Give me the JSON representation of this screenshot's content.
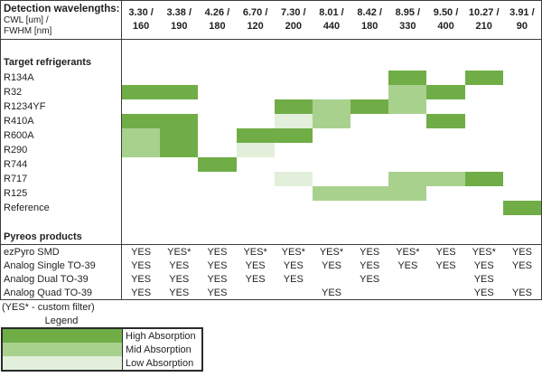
{
  "chart_data": {
    "type": "heatmap",
    "header": {
      "title": "Detection wavelengths:",
      "subtitle1": "CWL [um] /",
      "subtitle2": "FWHM [nm]"
    },
    "columns": [
      {
        "cwl": "3.30",
        "fwhm": "160"
      },
      {
        "cwl": "3.38",
        "fwhm": "190"
      },
      {
        "cwl": "4.26",
        "fwhm": "180"
      },
      {
        "cwl": "6.70",
        "fwhm": "120"
      },
      {
        "cwl": "7.30",
        "fwhm": "200"
      },
      {
        "cwl": "8.01",
        "fwhm": "440"
      },
      {
        "cwl": "8.42",
        "fwhm": "180"
      },
      {
        "cwl": "8.95",
        "fwhm": "330"
      },
      {
        "cwl": "9.50",
        "fwhm": "400"
      },
      {
        "cwl": "10.27",
        "fwhm": "210"
      },
      {
        "cwl": "3.91",
        "fwhm": "90"
      }
    ],
    "refrigerants_section_label": "Target refrigerants",
    "refrigerants": [
      {
        "name": "R134A",
        "levels": [
          "",
          "",
          "",
          "",
          "",
          "",
          "",
          "high",
          "",
          "high",
          ""
        ]
      },
      {
        "name": "R32",
        "levels": [
          "high",
          "high",
          "",
          "",
          "",
          "",
          "",
          "mid",
          "high",
          "",
          ""
        ]
      },
      {
        "name": "R1234YF",
        "levels": [
          "",
          "",
          "",
          "",
          "high",
          "mid",
          "high",
          "mid",
          "",
          "",
          ""
        ]
      },
      {
        "name": "R410A",
        "levels": [
          "high",
          "high",
          "",
          "",
          "low",
          "mid",
          "",
          "",
          "high",
          "",
          ""
        ]
      },
      {
        "name": "R600A",
        "levels": [
          "mid",
          "high",
          "",
          "high",
          "high",
          "",
          "",
          "",
          "",
          "",
          ""
        ]
      },
      {
        "name": "R290",
        "levels": [
          "mid",
          "high",
          "",
          "low",
          "",
          "",
          "",
          "",
          "",
          "",
          ""
        ]
      },
      {
        "name": "R744",
        "levels": [
          "",
          "",
          "high",
          "",
          "",
          "",
          "",
          "",
          "",
          "",
          ""
        ]
      },
      {
        "name": "R717",
        "levels": [
          "",
          "",
          "",
          "",
          "low",
          "",
          "",
          "mid",
          "mid",
          "high",
          ""
        ]
      },
      {
        "name": "R125",
        "levels": [
          "",
          "",
          "",
          "",
          "",
          "mid",
          "mid",
          "mid",
          "",
          "",
          ""
        ]
      },
      {
        "name": "Reference",
        "levels": [
          "",
          "",
          "",
          "",
          "",
          "",
          "",
          "",
          "",
          "",
          "high"
        ]
      }
    ],
    "products_section_label": "Pyreos products",
    "products": [
      {
        "name": "ezPyro SMD",
        "values": [
          "YES",
          "YES*",
          "YES",
          "YES*",
          "YES*",
          "YES*",
          "YES",
          "YES*",
          "YES",
          "YES*",
          "YES"
        ]
      },
      {
        "name": "Analog Single TO-39",
        "values": [
          "YES",
          "YES",
          "YES",
          "YES",
          "YES",
          "YES",
          "YES",
          "YES",
          "YES",
          "YES",
          "YES"
        ]
      },
      {
        "name": "Analog Dual TO-39",
        "values": [
          "YES",
          "YES",
          "YES",
          "YES",
          "YES",
          "",
          "YES",
          "",
          "",
          "YES",
          ""
        ]
      },
      {
        "name": "Analog Quad TO-39",
        "values": [
          "YES",
          "YES",
          "YES",
          "",
          "",
          "YES",
          "",
          "",
          "",
          "YES",
          "YES"
        ]
      }
    ],
    "footnote": "(YES* - custom filter)",
    "legend": {
      "title": "Legend",
      "items": [
        {
          "label": "High Absorption",
          "level": "high"
        },
        {
          "label": "Mid Absorption",
          "level": "mid"
        },
        {
          "label": "Low Absorption",
          "level": "low"
        }
      ]
    },
    "colors": {
      "high": "#70AD47",
      "mid": "#A9D18E",
      "low": "#E2EFDA"
    }
  }
}
